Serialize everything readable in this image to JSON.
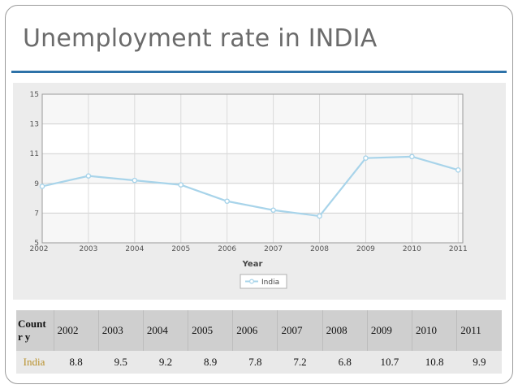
{
  "slide": {
    "title": "Unemployment rate in INDIA"
  },
  "colors": {
    "series": "#a8d4ea",
    "title": "#6b6b6b",
    "rule": "#2e72a8",
    "country_label": "#b8902a"
  },
  "chart_data": {
    "type": "line",
    "x": [
      2002,
      2003,
      2004,
      2005,
      2006,
      2007,
      2008,
      2009,
      2010,
      2011
    ],
    "series": [
      {
        "name": "India",
        "values": [
          8.8,
          9.5,
          9.2,
          8.9,
          7.8,
          7.2,
          6.8,
          10.7,
          10.8,
          9.9
        ]
      }
    ],
    "xlabel": "Year",
    "ylabel": "",
    "ylim": [
      5,
      15
    ],
    "yticks": [
      5,
      7,
      9,
      11,
      13,
      15
    ],
    "xticks": [
      "2002",
      "2003",
      "2004",
      "2005",
      "2006",
      "2007",
      "2008",
      "2009",
      "2010",
      "2011"
    ],
    "grid": true,
    "legend": "bottom-center"
  },
  "table": {
    "corner_label": "Countr y",
    "years": [
      "2002",
      "2003",
      "2004",
      "2005",
      "2006",
      "2007",
      "2008",
      "2009",
      "2010",
      "2011"
    ],
    "rows": [
      {
        "country": "India",
        "values": [
          "8.8",
          "9.5",
          "9.2",
          "8.9",
          "7.8",
          "7.2",
          "6.8",
          "10.7",
          "10.8",
          "9.9"
        ]
      }
    ]
  }
}
